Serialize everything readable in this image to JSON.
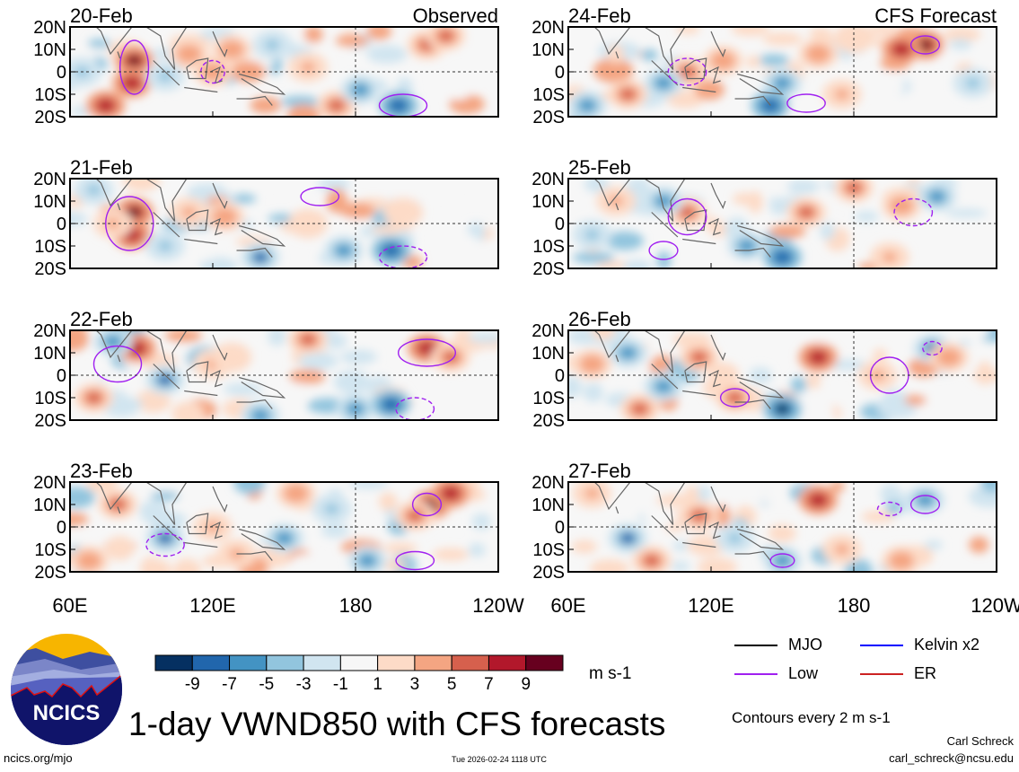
{
  "chart_data": {
    "type": "heatmap",
    "title": "1-day VWND850 with CFS forecasts",
    "units": "m s-1",
    "x_ticks": [
      "60E",
      "120E",
      "180",
      "120W"
    ],
    "x_range_lon": [
      60,
      240
    ],
    "y_ticks": [
      "20N",
      "10N",
      "0",
      "10S",
      "20S"
    ],
    "y_range_lat": [
      -20,
      20
    ],
    "colorbar": {
      "levels": [
        -9,
        -7,
        -5,
        -3,
        -1,
        1,
        3,
        5,
        7,
        9
      ],
      "colors": [
        "#053061",
        "#2166ac",
        "#4393c3",
        "#92c5de",
        "#d1e5f0",
        "#f7f7f7",
        "#fddbc7",
        "#f4a582",
        "#d6604d",
        "#b2182b",
        "#67001f"
      ]
    },
    "panels": [
      {
        "date": "20-Feb",
        "label": "Observed",
        "col": 0,
        "row": 0,
        "features": [
          [
            87,
            5,
            10
          ],
          [
            86,
            -5,
            9
          ],
          [
            110,
            8,
            5
          ],
          [
            128,
            10,
            5
          ],
          [
            160,
            2,
            4
          ],
          [
            210,
            12,
            7
          ],
          [
            218,
            16,
            6
          ],
          [
            172,
            -15,
            6
          ],
          [
            198,
            -15,
            -8
          ],
          [
            182,
            -8,
            -5
          ],
          [
            145,
            12,
            -4
          ],
          [
            100,
            -2,
            -3
          ],
          [
            75,
            -15,
            8
          ],
          [
            120,
            0,
            5
          ],
          [
            65,
            0,
            -3
          ]
        ],
        "contours": [
          [
            87,
            2,
            6,
            12
          ],
          [
            120,
            0,
            5,
            5
          ],
          [
            200,
            -15,
            10,
            5
          ]
        ]
      },
      {
        "date": "21-Feb",
        "label": "",
        "col": 0,
        "row": 1,
        "features": [
          [
            87,
            5,
            10
          ],
          [
            86,
            -5,
            9
          ],
          [
            78,
            0,
            4
          ],
          [
            110,
            5,
            4
          ],
          [
            125,
            3,
            5
          ],
          [
            160,
            0,
            3
          ],
          [
            200,
            5,
            3
          ],
          [
            195,
            -12,
            -8
          ],
          [
            140,
            -15,
            -7
          ],
          [
            175,
            -12,
            -5
          ],
          [
            70,
            15,
            -3
          ],
          [
            100,
            -10,
            -4
          ]
        ],
        "contours": [
          [
            85,
            0,
            10,
            12
          ],
          [
            200,
            -15,
            10,
            5
          ],
          [
            165,
            12,
            8,
            4
          ]
        ]
      },
      {
        "date": "22-Feb",
        "label": "",
        "col": 0,
        "row": 2,
        "features": [
          [
            88,
            12,
            8
          ],
          [
            78,
            15,
            -6
          ],
          [
            100,
            -2,
            -7
          ],
          [
            210,
            12,
            9
          ],
          [
            220,
            8,
            7
          ],
          [
            160,
            16,
            6
          ],
          [
            120,
            5,
            4
          ],
          [
            70,
            -10,
            6
          ],
          [
            180,
            -15,
            -6
          ],
          [
            195,
            -13,
            -8
          ],
          [
            140,
            -18,
            -6
          ],
          [
            128,
            8,
            3
          ]
        ],
        "contours": [
          [
            80,
            5,
            10,
            8
          ],
          [
            205,
            -15,
            8,
            5
          ],
          [
            210,
            10,
            12,
            6
          ]
        ]
      },
      {
        "date": "23-Feb",
        "label": "",
        "col": 0,
        "row": 3,
        "features": [
          [
            212,
            10,
            10
          ],
          [
            220,
            15,
            8
          ],
          [
            205,
            5,
            6
          ],
          [
            155,
            15,
            5
          ],
          [
            120,
            0,
            4
          ],
          [
            100,
            -5,
            -7
          ],
          [
            80,
            10,
            6
          ],
          [
            68,
            -15,
            5
          ],
          [
            150,
            -5,
            -5
          ],
          [
            185,
            -15,
            -6
          ],
          [
            170,
            8,
            -3
          ],
          [
            130,
            -12,
            4
          ]
        ],
        "contours": [
          [
            210,
            10,
            6,
            5
          ],
          [
            100,
            -8,
            8,
            5
          ],
          [
            205,
            -15,
            8,
            4
          ]
        ]
      },
      {
        "date": "24-Feb",
        "label": "CFS Forecast",
        "col": 1,
        "row": 0,
        "features": [
          [
            210,
            12,
            10
          ],
          [
            200,
            10,
            8
          ],
          [
            110,
            0,
            7
          ],
          [
            125,
            5,
            5
          ],
          [
            165,
            8,
            5
          ],
          [
            150,
            -5,
            -6
          ],
          [
            100,
            -5,
            -6
          ],
          [
            145,
            -15,
            -8
          ],
          [
            68,
            -15,
            -5
          ],
          [
            85,
            -10,
            6
          ],
          [
            175,
            -10,
            4
          ],
          [
            230,
            -5,
            -3
          ],
          [
            180,
            15,
            3
          ]
        ],
        "contours": [
          [
            210,
            12,
            6,
            4
          ],
          [
            110,
            0,
            8,
            6
          ],
          [
            160,
            -14,
            8,
            4
          ]
        ]
      },
      {
        "date": "25-Feb",
        "label": "",
        "col": 1,
        "row": 1,
        "features": [
          [
            110,
            5,
            7
          ],
          [
            160,
            5,
            7
          ],
          [
            180,
            16,
            6
          ],
          [
            200,
            8,
            5
          ],
          [
            150,
            -15,
            -8
          ],
          [
            135,
            -10,
            -5
          ],
          [
            100,
            10,
            -5
          ],
          [
            70,
            -5,
            -3
          ],
          [
            215,
            12,
            -5
          ],
          [
            80,
            10,
            4
          ],
          [
            195,
            -15,
            4
          ]
        ],
        "contours": [
          [
            110,
            3,
            8,
            8
          ],
          [
            205,
            5,
            8,
            6
          ],
          [
            100,
            -12,
            6,
            4
          ]
        ]
      },
      {
        "date": "26-Feb",
        "label": "",
        "col": 1,
        "row": 2,
        "features": [
          [
            165,
            8,
            9
          ],
          [
            115,
            8,
            6
          ],
          [
            130,
            -10,
            6
          ],
          [
            213,
            12,
            -7
          ],
          [
            220,
            8,
            5
          ],
          [
            150,
            -15,
            -9
          ],
          [
            85,
            10,
            -5
          ],
          [
            90,
            -15,
            6
          ],
          [
            70,
            5,
            5
          ],
          [
            190,
            0,
            4
          ],
          [
            100,
            -5,
            -5
          ]
        ],
        "contours": [
          [
            195,
            0,
            8,
            8
          ],
          [
            213,
            12,
            4,
            3
          ],
          [
            130,
            -10,
            6,
            4
          ]
        ]
      },
      {
        "date": "27-Feb",
        "label": "",
        "col": 1,
        "row": 3,
        "features": [
          [
            165,
            12,
            9
          ],
          [
            115,
            5,
            6
          ],
          [
            95,
            -15,
            6
          ],
          [
            150,
            -15,
            -6
          ],
          [
            85,
            -5,
            -7
          ],
          [
            210,
            12,
            -5
          ],
          [
            130,
            -5,
            -4
          ],
          [
            70,
            15,
            4
          ],
          [
            175,
            -10,
            4
          ],
          [
            200,
            -15,
            5
          ]
        ],
        "contours": [
          [
            210,
            10,
            6,
            4
          ],
          [
            195,
            8,
            5,
            3
          ],
          [
            150,
            -15,
            5,
            3
          ]
        ]
      }
    ],
    "legend": [
      {
        "name": "MJO",
        "color": "#000000"
      },
      {
        "name": "Kelvin x2",
        "color": "#0000ff"
      },
      {
        "name": "Low",
        "color": "#a020f0"
      },
      {
        "name": "ER",
        "color": "#cc2222"
      }
    ],
    "contour_note": "Contours every 2 m s-1"
  },
  "footer": {
    "site": "ncics.org/mjo",
    "timestamp": "Tue 2026-02-24 1118 UTC",
    "author": "Carl Schreck",
    "email": "carl_schreck@ncsu.edu",
    "logo_text": "NCICS"
  }
}
